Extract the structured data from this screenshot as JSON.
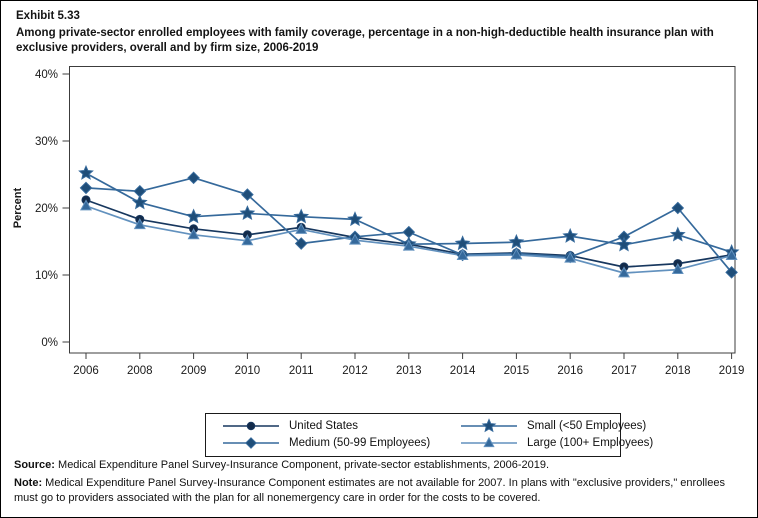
{
  "header": {
    "exhibit": "Exhibit 5.33",
    "title": "Among private-sector enrolled employees with family coverage, percentage in a non-high-deductible health insurance plan with exclusive providers, overall and by firm size, 2006-2019"
  },
  "chart_data": {
    "type": "line",
    "title": "Among private-sector enrolled employees with family coverage, percentage in a non-high-deductible health insurance plan with exclusive providers, overall and by firm size, 2006-2019",
    "xlabel": "",
    "ylabel": "Percent",
    "ylim": [
      0,
      40
    ],
    "grid": false,
    "legend_position": "bottom",
    "y_ticks": [
      {
        "value": 0,
        "label": "0%"
      },
      {
        "value": 10,
        "label": "10%"
      },
      {
        "value": 20,
        "label": "20%"
      },
      {
        "value": 30,
        "label": "30%"
      },
      {
        "value": 40,
        "label": "40%"
      }
    ],
    "categories": [
      "2006",
      "2008",
      "2009",
      "2010",
      "2011",
      "2012",
      "2013",
      "2014",
      "2015",
      "2016",
      "2017",
      "2018",
      "2019"
    ],
    "note_missing_year": "2007",
    "series": [
      {
        "name": "United States",
        "marker": "circle",
        "line_color": "#17375E",
        "marker_color": "#132B4A",
        "values": [
          21.2,
          18.3,
          16.9,
          16.0,
          17.1,
          15.6,
          14.6,
          13.1,
          13.3,
          12.9,
          11.2,
          11.7,
          13.0
        ]
      },
      {
        "name": "Medium (50-99 Employees)",
        "marker": "diamond",
        "line_color": "#35699B",
        "marker_color": "#1F4E79",
        "values": [
          23.0,
          22.5,
          24.5,
          22.0,
          14.7,
          15.7,
          16.4,
          13.0,
          13.2,
          12.7,
          15.7,
          20.0,
          10.4
        ]
      },
      {
        "name": "Small (<50 Employees)",
        "marker": "star",
        "line_color": "#35699B",
        "marker_color": "#1F4E79",
        "values": [
          25.2,
          20.8,
          18.7,
          19.2,
          18.7,
          18.3,
          14.6,
          14.7,
          14.9,
          15.8,
          14.5,
          16.0,
          13.4
        ]
      },
      {
        "name": "Large (100+ Employees)",
        "marker": "triangle",
        "line_color": "#6291BE",
        "marker_color": "#35699B",
        "values": [
          20.3,
          17.5,
          16.0,
          15.1,
          16.8,
          15.2,
          14.3,
          12.9,
          13.0,
          12.5,
          10.3,
          10.8,
          12.9
        ]
      }
    ]
  },
  "legend": {
    "order": [
      0,
      2,
      1,
      3
    ]
  },
  "footer": {
    "source_label": "Source:",
    "source_text": " Medical Expenditure Panel Survey-Insurance Component, private-sector establishments, 2006-2019.",
    "note_label": "Note:",
    "note_text": " Medical Expenditure Panel Survey-Insurance Component estimates are not available for 2007. In plans with \"exclusive providers,\" enrollees must go to providers associated with the plan for all nonemergency care in order for the costs to be covered."
  }
}
